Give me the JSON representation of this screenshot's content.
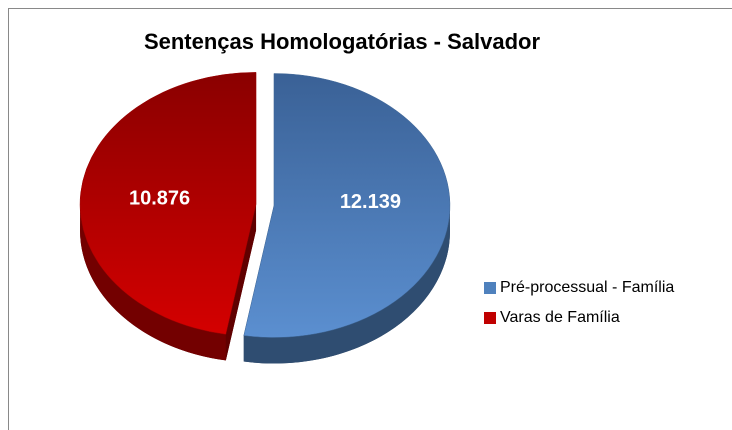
{
  "chart_data": {
    "type": "pie",
    "title": "Sentenças Homologatórias - Salvador",
    "categories": [
      "Pré-processual - Família",
      "Varas de Família"
    ],
    "values": [
      12139,
      10876
    ],
    "value_labels": [
      "12.139",
      "10.876"
    ],
    "colors": [
      "#4f81bd",
      "#c00000"
    ],
    "legend": "right"
  }
}
